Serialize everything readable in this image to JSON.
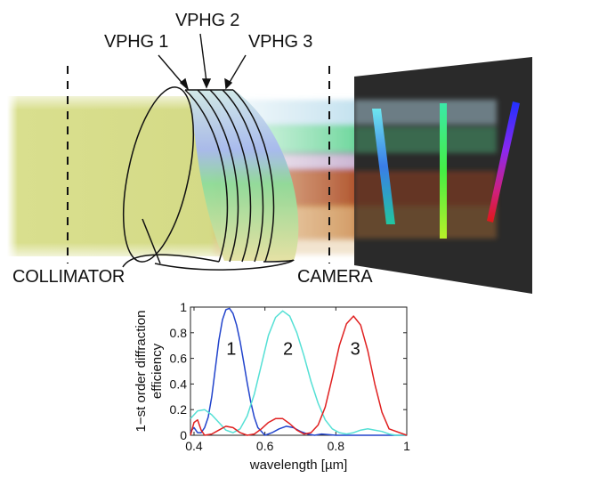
{
  "labels": {
    "grating_1": "VPHG 1",
    "grating_2": "VPHG 2",
    "grating_3": "VPHG 3",
    "collimator": "COLLIMATOR",
    "camera": "CAMERA"
  },
  "colors": {
    "collimated_beam": "#d9df8e",
    "series_1": "#2244cc",
    "series_2": "#55e0d5",
    "series_3": "#e02020",
    "detector": "#2a2a2a"
  },
  "chart_data": {
    "type": "line",
    "ylabel": "1−st order diffraction efficiency",
    "xlabel": "wavelength  [µm]",
    "xlim": [
      0.39,
      1.0
    ],
    "ylim": [
      0,
      1
    ],
    "x_ticks": [
      "0.4",
      "0.6",
      "0.8",
      "1"
    ],
    "y_ticks": [
      "0",
      "0.2",
      "0.4",
      "0.6",
      "0.8",
      "1"
    ],
    "series": [
      {
        "name": "1",
        "color": "#2244cc",
        "x": [
          0.39,
          0.4,
          0.41,
          0.42,
          0.43,
          0.44,
          0.45,
          0.46,
          0.47,
          0.48,
          0.49,
          0.5,
          0.51,
          0.52,
          0.53,
          0.54,
          0.55,
          0.56,
          0.57,
          0.58,
          0.6,
          0.62,
          0.64,
          0.66,
          0.68,
          0.7,
          0.72,
          0.74,
          0.76,
          0.8,
          0.9,
          1.0
        ],
        "y": [
          0.03,
          0.06,
          0.02,
          0.02,
          0.06,
          0.14,
          0.3,
          0.52,
          0.74,
          0.9,
          0.98,
          0.99,
          0.95,
          0.86,
          0.73,
          0.57,
          0.41,
          0.26,
          0.14,
          0.06,
          0.0,
          0.02,
          0.05,
          0.07,
          0.06,
          0.03,
          0.01,
          0.0,
          0.01,
          0.0,
          0.0,
          0.0
        ]
      },
      {
        "name": "2",
        "color": "#55e0d5",
        "x": [
          0.39,
          0.41,
          0.43,
          0.45,
          0.47,
          0.49,
          0.51,
          0.53,
          0.55,
          0.57,
          0.59,
          0.61,
          0.63,
          0.65,
          0.67,
          0.69,
          0.71,
          0.73,
          0.75,
          0.77,
          0.79,
          0.81,
          0.83,
          0.85,
          0.87,
          0.89,
          0.91,
          0.93,
          0.95,
          0.97,
          1.0
        ],
        "y": [
          0.13,
          0.19,
          0.2,
          0.16,
          0.1,
          0.04,
          0.02,
          0.05,
          0.15,
          0.32,
          0.55,
          0.78,
          0.92,
          0.97,
          0.93,
          0.8,
          0.62,
          0.42,
          0.25,
          0.12,
          0.05,
          0.02,
          0.01,
          0.02,
          0.04,
          0.05,
          0.04,
          0.03,
          0.01,
          0.0,
          0.0
        ]
      },
      {
        "name": "3",
        "color": "#e02020",
        "x": [
          0.39,
          0.4,
          0.41,
          0.42,
          0.43,
          0.45,
          0.47,
          0.49,
          0.51,
          0.53,
          0.55,
          0.57,
          0.59,
          0.61,
          0.63,
          0.65,
          0.67,
          0.69,
          0.71,
          0.73,
          0.75,
          0.77,
          0.79,
          0.81,
          0.83,
          0.85,
          0.87,
          0.89,
          0.91,
          0.93,
          0.95,
          1.0
        ],
        "y": [
          0.0,
          0.1,
          0.12,
          0.04,
          0.0,
          0.01,
          0.04,
          0.07,
          0.06,
          0.02,
          0.0,
          0.01,
          0.05,
          0.1,
          0.13,
          0.13,
          0.09,
          0.04,
          0.01,
          0.02,
          0.08,
          0.22,
          0.45,
          0.7,
          0.87,
          0.93,
          0.86,
          0.66,
          0.4,
          0.18,
          0.05,
          0.0
        ]
      }
    ]
  }
}
